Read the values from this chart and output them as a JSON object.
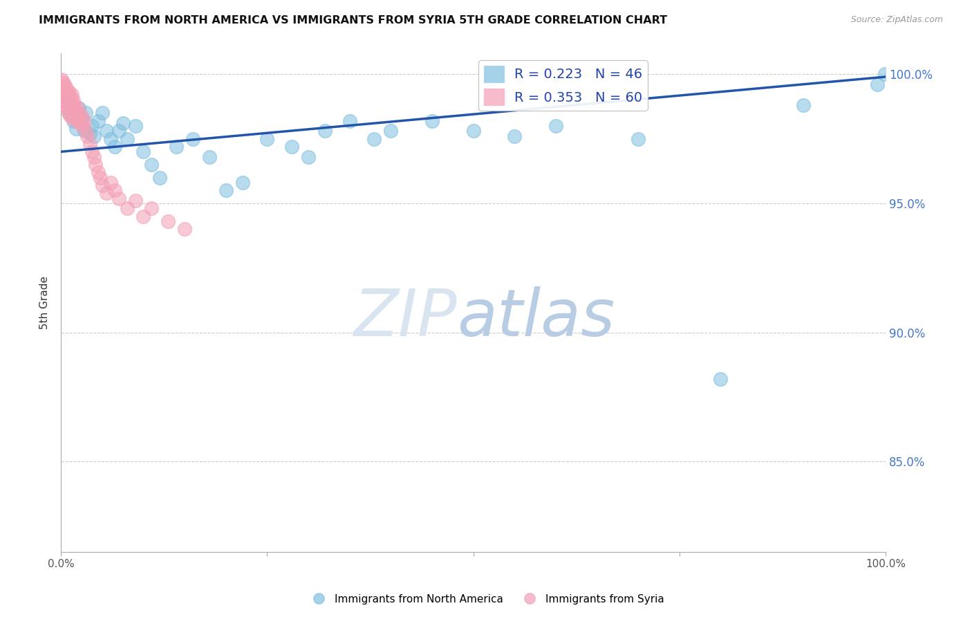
{
  "title": "IMMIGRANTS FROM NORTH AMERICA VS IMMIGRANTS FROM SYRIA 5TH GRADE CORRELATION CHART",
  "source": "Source: ZipAtlas.com",
  "ylabel": "5th Grade",
  "R_blue": 0.223,
  "N_blue": 46,
  "R_pink": 0.353,
  "N_pink": 60,
  "blue_color": "#7fbfdf",
  "pink_color": "#f4a0b5",
  "trendline_color": "#2255aa",
  "background_color": "#ffffff",
  "xlim": [
    0.0,
    1.0
  ],
  "ylim": [
    0.815,
    1.008
  ],
  "y_ticks": [
    0.85,
    0.9,
    0.95,
    1.0
  ],
  "y_tick_labels": [
    "85.0%",
    "90.0%",
    "95.0%",
    "100.0%"
  ],
  "trendline_x": [
    0.0,
    1.0
  ],
  "trendline_y": [
    0.97,
    0.999
  ],
  "na_x": [
    0.005,
    0.01,
    0.012,
    0.015,
    0.018,
    0.02,
    0.022,
    0.025,
    0.028,
    0.03,
    0.035,
    0.038,
    0.04,
    0.045,
    0.05,
    0.055,
    0.06,
    0.065,
    0.07,
    0.075,
    0.08,
    0.09,
    0.1,
    0.11,
    0.12,
    0.14,
    0.16,
    0.18,
    0.2,
    0.22,
    0.25,
    0.28,
    0.3,
    0.32,
    0.35,
    0.38,
    0.4,
    0.45,
    0.5,
    0.55,
    0.6,
    0.7,
    0.8,
    0.9,
    0.99,
    0.999
  ],
  "na_y": [
    0.99,
    0.985,
    0.988,
    0.982,
    0.979,
    0.984,
    0.987,
    0.983,
    0.978,
    0.985,
    0.977,
    0.98,
    0.976,
    0.982,
    0.985,
    0.978,
    0.975,
    0.972,
    0.978,
    0.981,
    0.975,
    0.98,
    0.97,
    0.965,
    0.96,
    0.972,
    0.975,
    0.968,
    0.955,
    0.958,
    0.975,
    0.972,
    0.968,
    0.978,
    0.982,
    0.975,
    0.978,
    0.982,
    0.978,
    0.976,
    0.98,
    0.975,
    0.882,
    0.988,
    0.996,
    1.0
  ],
  "sy_x": [
    0.001,
    0.001,
    0.002,
    0.002,
    0.003,
    0.003,
    0.004,
    0.004,
    0.005,
    0.005,
    0.006,
    0.006,
    0.007,
    0.007,
    0.008,
    0.008,
    0.009,
    0.009,
    0.01,
    0.01,
    0.011,
    0.011,
    0.012,
    0.012,
    0.013,
    0.013,
    0.014,
    0.014,
    0.015,
    0.015,
    0.016,
    0.017,
    0.018,
    0.019,
    0.02,
    0.02,
    0.022,
    0.023,
    0.025,
    0.026,
    0.028,
    0.03,
    0.032,
    0.035,
    0.038,
    0.04,
    0.042,
    0.045,
    0.048,
    0.05,
    0.055,
    0.06,
    0.065,
    0.07,
    0.08,
    0.09,
    0.1,
    0.11,
    0.13,
    0.15
  ],
  "sy_y": [
    0.998,
    0.995,
    0.993,
    0.997,
    0.994,
    0.992,
    0.996,
    0.99,
    0.993,
    0.988,
    0.995,
    0.991,
    0.989,
    0.994,
    0.992,
    0.987,
    0.99,
    0.985,
    0.993,
    0.989,
    0.988,
    0.984,
    0.991,
    0.987,
    0.985,
    0.992,
    0.988,
    0.983,
    0.99,
    0.986,
    0.984,
    0.988,
    0.985,
    0.982,
    0.987,
    0.983,
    0.985,
    0.981,
    0.984,
    0.98,
    0.982,
    0.978,
    0.976,
    0.973,
    0.97,
    0.968,
    0.965,
    0.962,
    0.96,
    0.957,
    0.954,
    0.958,
    0.955,
    0.952,
    0.948,
    0.951,
    0.945,
    0.948,
    0.943,
    0.94
  ],
  "legend_label_blue": "Immigrants from North America",
  "legend_label_pink": "Immigrants from Syria"
}
